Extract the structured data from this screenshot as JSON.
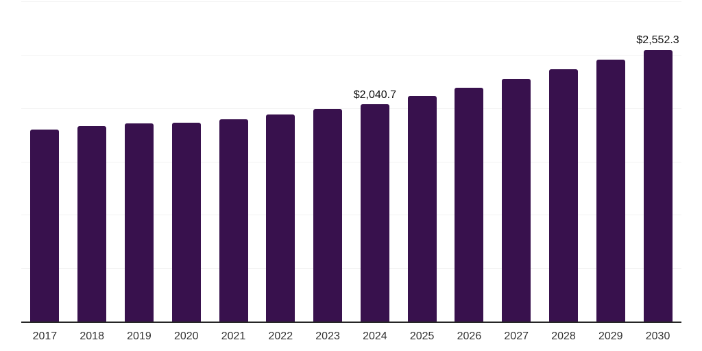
{
  "chart_data": {
    "type": "bar",
    "title": "",
    "xlabel": "",
    "ylabel": "",
    "categories": [
      "2017",
      "2018",
      "2019",
      "2020",
      "2021",
      "2022",
      "2023",
      "2024",
      "2025",
      "2026",
      "2027",
      "2028",
      "2029",
      "2030"
    ],
    "values": [
      1805,
      1835,
      1860,
      1868,
      1900,
      1948,
      1998,
      2040.7,
      2118,
      2198,
      2282,
      2368,
      2458,
      2552.3
    ],
    "value_labels": {
      "2024": "$2,040.7",
      "2030": "$2,552.3"
    },
    "ylim": [
      0,
      3000
    ],
    "gridline_step": 500,
    "grid": "horizontal",
    "legend_position": "none",
    "colors": {
      "bar": "#38114d",
      "gridline": "#f2f2f2",
      "axis": "#262626",
      "tick_label": "#333333",
      "value_label": "#111111",
      "background": "#ffffff"
    }
  }
}
